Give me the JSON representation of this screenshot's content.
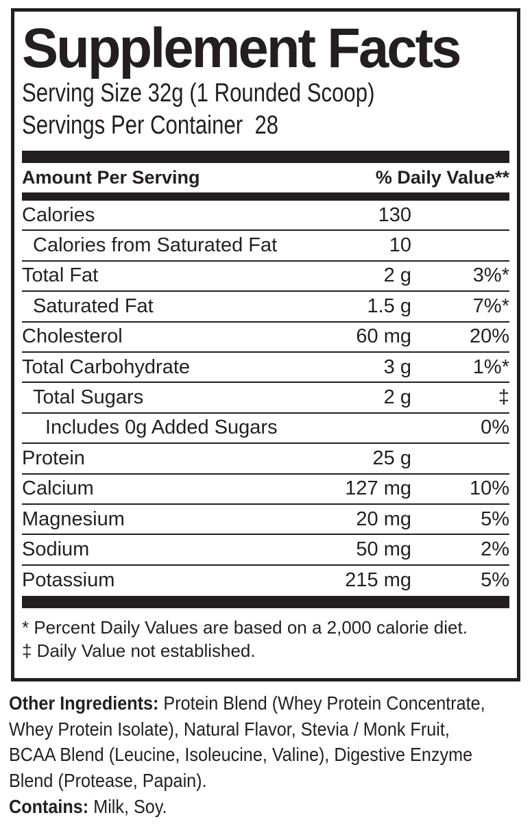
{
  "colors": {
    "ink": "#231f20",
    "background": "#ffffff"
  },
  "panel": {
    "title": "Supplement Facts",
    "serving_size": "Serving Size 32g (1 Rounded Scoop)",
    "servings_per_container": "Servings Per Container  28",
    "column_headers": {
      "amount": "Amount Per Serving",
      "daily_value": "% Daily Value**"
    },
    "rows": [
      {
        "name": "Calories",
        "amount": "130",
        "dv": "",
        "indent": 0
      },
      {
        "name": "Calories from Saturated Fat",
        "amount": "10",
        "dv": "",
        "indent": 1
      },
      {
        "name": "Total Fat",
        "amount": "2 g",
        "dv": "3%*",
        "indent": 0
      },
      {
        "name": "Saturated Fat",
        "amount": "1.5 g",
        "dv": "7%*",
        "indent": 1
      },
      {
        "name": "Cholesterol",
        "amount": "60 mg",
        "dv": "20%",
        "indent": 0
      },
      {
        "name": "Total Carbohydrate",
        "amount": "3 g",
        "dv": "1%*",
        "indent": 0
      },
      {
        "name": "Total Sugars",
        "amount": "2 g",
        "dv": "‡",
        "indent": 1
      },
      {
        "name": "Includes 0g Added Sugars",
        "amount": "",
        "dv": "0%",
        "indent": 2
      },
      {
        "name": "Protein",
        "amount": "25 g",
        "dv": "",
        "indent": 0
      },
      {
        "name": "Calcium",
        "amount": "127 mg",
        "dv": "10%",
        "indent": 0
      },
      {
        "name": "Magnesium",
        "amount": "20 mg",
        "dv": "5%",
        "indent": 0
      },
      {
        "name": "Sodium",
        "amount": "50 mg",
        "dv": "2%",
        "indent": 0
      },
      {
        "name": "Potassium",
        "amount": "215 mg",
        "dv": "5%",
        "indent": 0
      }
    ],
    "footnotes": [
      "* Percent Daily Values are based on a 2,000 calorie diet.",
      "‡ Daily Value not established."
    ]
  },
  "footer": {
    "other_ingredients_label": "Other Ingredients:",
    "other_ingredients_lines": [
      " Protein Blend (Whey Protein Concentrate,",
      "Whey Protein Isolate), Natural Flavor, Stevia / Monk Fruit,",
      "BCAA Blend (Leucine, Isoleucine, Valine), Digestive Enzyme",
      "Blend (Protease, Papain)."
    ],
    "contains_label": "Contains:",
    "contains_rest": " Milk, Soy."
  }
}
